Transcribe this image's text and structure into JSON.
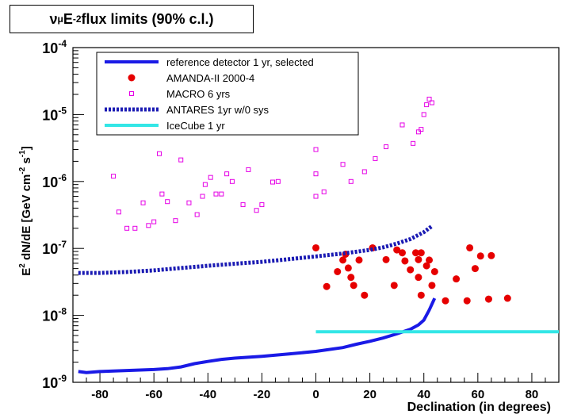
{
  "chart_data": {
    "type": "scatter",
    "title_parts": {
      "nu": "ν",
      "mu": "μ",
      "e": " E",
      "exp": "-2",
      "rest": " flux limits (90% c.l.)"
    },
    "xlabel": "Declination (in degrees)",
    "ylabel_parts": {
      "e": "E",
      "e_exp": "2",
      "mid": " dN/dE [GeV cm",
      "cm_exp": "-2",
      "s": " s",
      "s_exp": "-1",
      "end": "]"
    },
    "x_ticks": [
      "-80",
      "-60",
      "-40",
      "-20",
      "0",
      "20",
      "40",
      "60",
      "80"
    ],
    "y_ticks": [
      {
        "base": "10",
        "exp": "-9"
      },
      {
        "base": "10",
        "exp": "-8"
      },
      {
        "base": "10",
        "exp": "-7"
      },
      {
        "base": "10",
        "exp": "-6"
      },
      {
        "base": "10",
        "exp": "-5"
      },
      {
        "base": "10",
        "exp": "-4"
      }
    ],
    "xlim": [
      -90,
      90
    ],
    "ylim": [
      1e-09,
      0.0001
    ],
    "yscale": "log",
    "grid": false,
    "legend_position": "top-left",
    "series": [
      {
        "name": "reference detector 1 yr, selected",
        "kind": "line",
        "color": "#1a1ae6",
        "points": [
          [
            -88,
            1.45e-09
          ],
          [
            -85,
            1.4e-09
          ],
          [
            -80,
            1.45e-09
          ],
          [
            -70,
            1.5e-09
          ],
          [
            -60,
            1.55e-09
          ],
          [
            -55,
            1.6e-09
          ],
          [
            -50,
            1.7e-09
          ],
          [
            -45,
            1.9e-09
          ],
          [
            -40,
            2.05e-09
          ],
          [
            -35,
            2.2e-09
          ],
          [
            -30,
            2.3e-09
          ],
          [
            -20,
            2.45e-09
          ],
          [
            -10,
            2.65e-09
          ],
          [
            0,
            2.9e-09
          ],
          [
            10,
            3.3e-09
          ],
          [
            15,
            3.7e-09
          ],
          [
            20,
            4.1e-09
          ],
          [
            25,
            4.6e-09
          ],
          [
            30,
            5.3e-09
          ],
          [
            35,
            6.2e-09
          ],
          [
            38,
            7.2e-09
          ],
          [
            40,
            8.5e-09
          ],
          [
            42,
            1.2e-08
          ],
          [
            44,
            1.8e-08
          ]
        ]
      },
      {
        "name": "AMANDA-II 2000-4",
        "kind": "scatter",
        "color": "#e60000",
        "points": [
          [
            0,
            1.02e-07
          ],
          [
            4,
            2.7e-08
          ],
          [
            8,
            4.5e-08
          ],
          [
            10,
            6.7e-08
          ],
          [
            11,
            8.2e-08
          ],
          [
            12,
            5.1e-08
          ],
          [
            13,
            3.7e-08
          ],
          [
            14,
            2.8e-08
          ],
          [
            16,
            6.7e-08
          ],
          [
            18,
            2e-08
          ],
          [
            21,
            1.02e-07
          ],
          [
            26,
            6.8e-08
          ],
          [
            29,
            2.8e-08
          ],
          [
            30,
            9.5e-08
          ],
          [
            32,
            8.6e-08
          ],
          [
            33,
            6.5e-08
          ],
          [
            35,
            4.8e-08
          ],
          [
            37,
            8.6e-08
          ],
          [
            38,
            3.7e-08
          ],
          [
            38,
            6.8e-08
          ],
          [
            39,
            8.6e-08
          ],
          [
            39,
            2e-08
          ],
          [
            41,
            5.5e-08
          ],
          [
            42,
            6.7e-08
          ],
          [
            43,
            2.8e-08
          ],
          [
            44,
            4.5e-08
          ],
          [
            48,
            1.65e-08
          ],
          [
            52,
            3.5e-08
          ],
          [
            56,
            1.65e-08
          ],
          [
            57,
            1.02e-07
          ],
          [
            59,
            5e-08
          ],
          [
            61,
            7.7e-08
          ],
          [
            64,
            1.75e-08
          ],
          [
            65,
            7.8e-08
          ],
          [
            71,
            1.8e-08
          ]
        ]
      },
      {
        "name": "MACRO 6 yrs",
        "kind": "scatter",
        "color": "#e600e6",
        "points": [
          [
            -75,
            1.2e-06
          ],
          [
            -73,
            3.5e-07
          ],
          [
            -70,
            2e-07
          ],
          [
            -67,
            2e-07
          ],
          [
            -64,
            4.8e-07
          ],
          [
            -62,
            2.2e-07
          ],
          [
            -60,
            2.5e-07
          ],
          [
            -58,
            2.6e-06
          ],
          [
            -57,
            6.5e-07
          ],
          [
            -55,
            5e-07
          ],
          [
            -52,
            2.6e-07
          ],
          [
            -50,
            2.1e-06
          ],
          [
            -47,
            4.8e-07
          ],
          [
            -44,
            3.2e-07
          ],
          [
            -42,
            6e-07
          ],
          [
            -41,
            9e-07
          ],
          [
            -39,
            1.15e-06
          ],
          [
            -37,
            6.5e-07
          ],
          [
            -35,
            6.5e-07
          ],
          [
            -33,
            1.3e-06
          ],
          [
            -31,
            1e-06
          ],
          [
            -27,
            4.5e-07
          ],
          [
            -25,
            1.5e-06
          ],
          [
            -22,
            3.7e-07
          ],
          [
            -20,
            4.5e-07
          ],
          [
            -16,
            9.8e-07
          ],
          [
            -14,
            1e-06
          ],
          [
            0,
            6e-07
          ],
          [
            0,
            1.3e-06
          ],
          [
            0,
            3e-06
          ],
          [
            3,
            7e-07
          ],
          [
            10,
            1.8e-06
          ],
          [
            13,
            1e-06
          ],
          [
            18,
            1.4e-06
          ],
          [
            22,
            2.2e-06
          ],
          [
            26,
            3.3e-06
          ],
          [
            32,
            7e-06
          ],
          [
            36,
            3.7e-06
          ],
          [
            38,
            5.5e-06
          ],
          [
            39,
            6e-06
          ],
          [
            40,
            1e-05
          ],
          [
            41,
            1.4e-05
          ],
          [
            42,
            1.7e-05
          ],
          [
            43,
            1.5e-05
          ]
        ]
      },
      {
        "name": "ANTARES 1yr w/0 sys",
        "kind": "dashed-line",
        "color": "#1a1ab3",
        "points": [
          [
            -88,
            4.3e-08
          ],
          [
            -80,
            4.3e-08
          ],
          [
            -70,
            4.45e-08
          ],
          [
            -60,
            4.7e-08
          ],
          [
            -50,
            5.1e-08
          ],
          [
            -40,
            5.5e-08
          ],
          [
            -30,
            5.9e-08
          ],
          [
            -20,
            6.3e-08
          ],
          [
            -10,
            6.9e-08
          ],
          [
            0,
            7.6e-08
          ],
          [
            10,
            8.4e-08
          ],
          [
            20,
            9.5e-08
          ],
          [
            25,
            1.04e-07
          ],
          [
            30,
            1.18e-07
          ],
          [
            35,
            1.38e-07
          ],
          [
            40,
            1.75e-07
          ],
          [
            43,
            2.15e-07
          ]
        ]
      },
      {
        "name": "IceCube 1 yr",
        "kind": "line",
        "color": "#33e6e6",
        "points": [
          [
            0,
            5.7e-09
          ],
          [
            90,
            5.7e-09
          ]
        ]
      }
    ]
  }
}
